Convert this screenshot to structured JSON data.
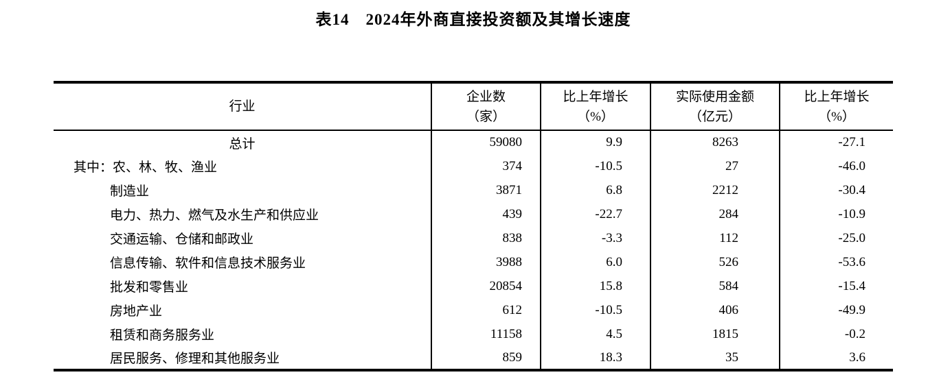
{
  "title": "表14　2024年外商直接投资额及其增长速度",
  "table": {
    "columns": [
      {
        "line1": "行业",
        "line2": ""
      },
      {
        "line1": "企业数",
        "line2": "（家）"
      },
      {
        "line1": "比上年增长",
        "line2": "（%）"
      },
      {
        "line1": "实际使用金额",
        "line2": "（亿元）"
      },
      {
        "line1": "比上年增长",
        "line2": "（%）"
      }
    ],
    "rows": [
      {
        "industry": "总计",
        "label_style": "center",
        "values": [
          "59080",
          "9.9",
          "8263",
          "-27.1"
        ]
      },
      {
        "industry": "其中：农、林、牧、渔业",
        "label_style": "hanging",
        "values": [
          "374",
          "-10.5",
          "27",
          "-46.0"
        ]
      },
      {
        "industry": "制造业",
        "label_style": "indent",
        "values": [
          "3871",
          "6.8",
          "2212",
          "-30.4"
        ]
      },
      {
        "industry": "电力、热力、燃气及水生产和供应业",
        "label_style": "indent",
        "values": [
          "439",
          "-22.7",
          "284",
          "-10.9"
        ]
      },
      {
        "industry": "交通运输、仓储和邮政业",
        "label_style": "indent",
        "values": [
          "838",
          "-3.3",
          "112",
          "-25.0"
        ]
      },
      {
        "industry": "信息传输、软件和信息技术服务业",
        "label_style": "indent",
        "values": [
          "3988",
          "6.0",
          "526",
          "-53.6"
        ]
      },
      {
        "industry": "批发和零售业",
        "label_style": "indent",
        "values": [
          "20854",
          "15.8",
          "584",
          "-15.4"
        ]
      },
      {
        "industry": "房地产业",
        "label_style": "indent",
        "values": [
          "612",
          "-10.5",
          "406",
          "-49.9"
        ]
      },
      {
        "industry": "租赁和商务服务业",
        "label_style": "indent",
        "values": [
          "11158",
          "4.5",
          "1815",
          "-0.2"
        ]
      },
      {
        "industry": "居民服务、修理和其他服务业",
        "label_style": "indent",
        "values": [
          "859",
          "18.3",
          "35",
          "3.6"
        ]
      }
    ]
  }
}
